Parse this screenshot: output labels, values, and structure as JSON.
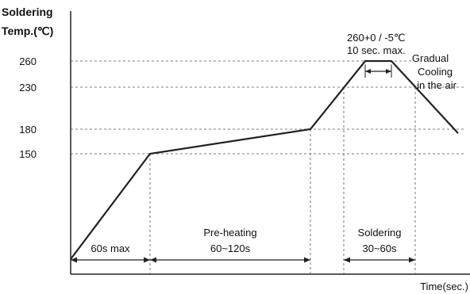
{
  "chart_data": {
    "type": "line",
    "ylabel_line1": "Soldering",
    "ylabel_line2": "Temp.(℃)",
    "xlabel": "Time(sec.)",
    "yticks": [
      260,
      230,
      180,
      150
    ],
    "ylim": [
      0,
      300
    ],
    "series": [
      {
        "points": [
          {
            "x": 0,
            "y": 0
          },
          {
            "x": 60,
            "y": 150
          },
          {
            "x": 180,
            "y": 180
          },
          {
            "x": 225,
            "y": 260
          },
          {
            "x": 235,
            "y": 260
          },
          {
            "x": 280,
            "y": 175
          }
        ]
      }
    ],
    "annotations": {
      "peak_top": "260+0 / -5℃",
      "peak_bottom": "10 sec. max.",
      "cooling_1": "Gradual",
      "cooling_2": "Cooling",
      "cooling_3": "in the air"
    },
    "intervals": [
      {
        "line1": "",
        "line2": "60s max",
        "from": 0,
        "to": 60
      },
      {
        "line1": "Pre-heating",
        "line2": "60~120s",
        "from": 60,
        "to": 180
      },
      {
        "line1": "Soldering",
        "line2": "30~60s",
        "from": 205,
        "to": 260
      }
    ]
  }
}
